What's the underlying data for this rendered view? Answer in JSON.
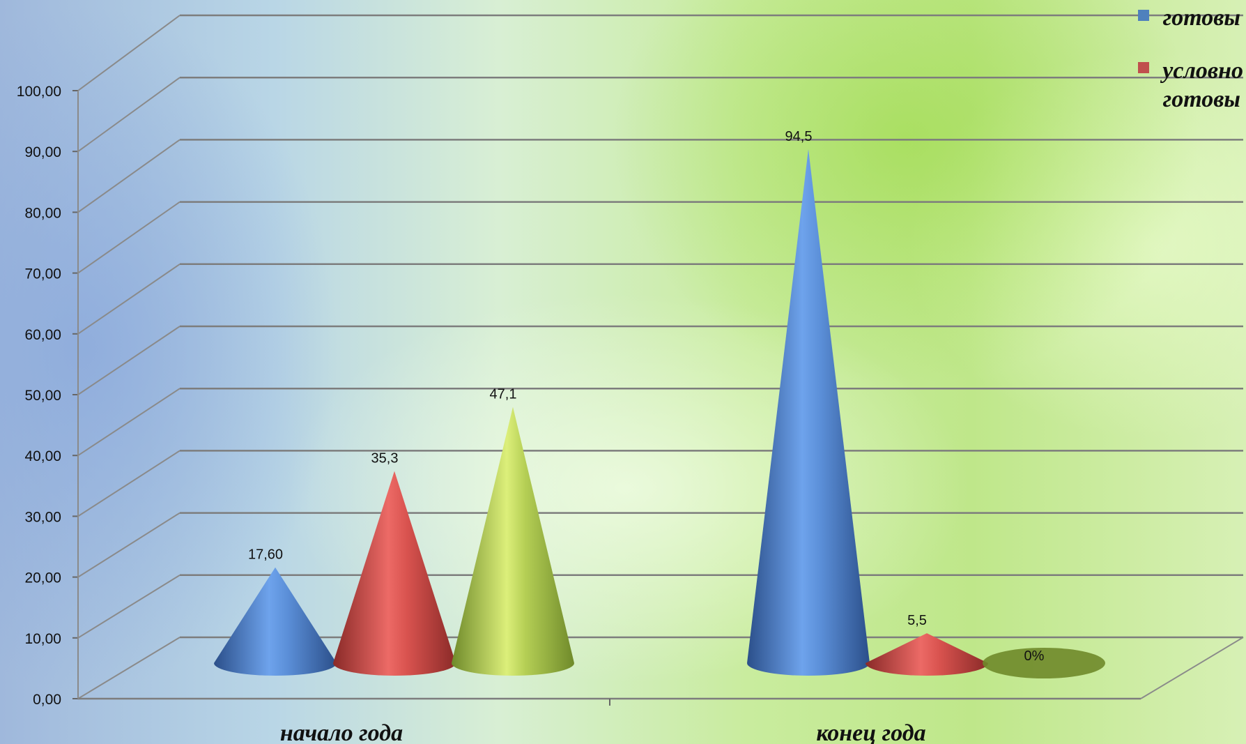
{
  "chart_data": {
    "type": "bar",
    "style": "3d-cone",
    "categories": [
      "начало года",
      "конец года"
    ],
    "series": [
      {
        "name": "готовы",
        "color": "#4f81bd",
        "values": [
          17.6,
          94.5
        ],
        "labels": [
          "17,60",
          "94,5"
        ]
      },
      {
        "name": "условно готовы",
        "color": "#c0504d",
        "values": [
          35.3,
          5.5
        ],
        "labels": [
          "35,3",
          "5,5"
        ]
      },
      {
        "name": "",
        "color": "#9bbb59",
        "values": [
          47.1,
          0
        ],
        "labels": [
          "47,1",
          "0%"
        ]
      }
    ],
    "ylim": [
      0,
      100
    ],
    "yticks": [
      "0,00",
      "10,00",
      "20,00",
      "30,00",
      "40,00",
      "50,00",
      "60,00",
      "70,00",
      "80,00",
      "90,00",
      "100,00"
    ],
    "grid": true,
    "legend_position": "top-right",
    "legend": [
      {
        "name_line1": "готовы",
        "name_line2": "",
        "color": "#4f81bd"
      },
      {
        "name_line1": "условно",
        "name_line2": "готовы",
        "color": "#c0504d"
      }
    ]
  }
}
